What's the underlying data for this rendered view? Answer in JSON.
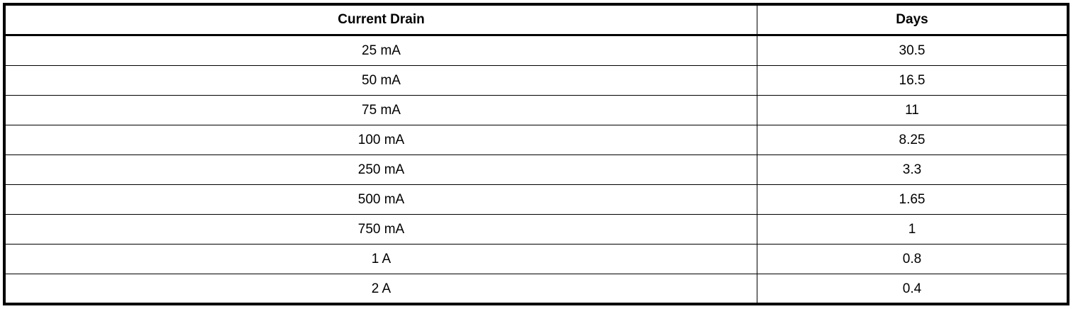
{
  "table": {
    "headers": [
      "Current Drain",
      "Days"
    ],
    "rows": [
      [
        "25 mA",
        "30.5"
      ],
      [
        "50 mA",
        "16.5"
      ],
      [
        "75 mA",
        "11"
      ],
      [
        "100 mA",
        "8.25"
      ],
      [
        "250 mA",
        "3.3"
      ],
      [
        "500 mA",
        "1.65"
      ],
      [
        "750 mA",
        "1"
      ],
      [
        "1 A",
        "0.8"
      ],
      [
        "2 A",
        "0.4"
      ]
    ]
  }
}
